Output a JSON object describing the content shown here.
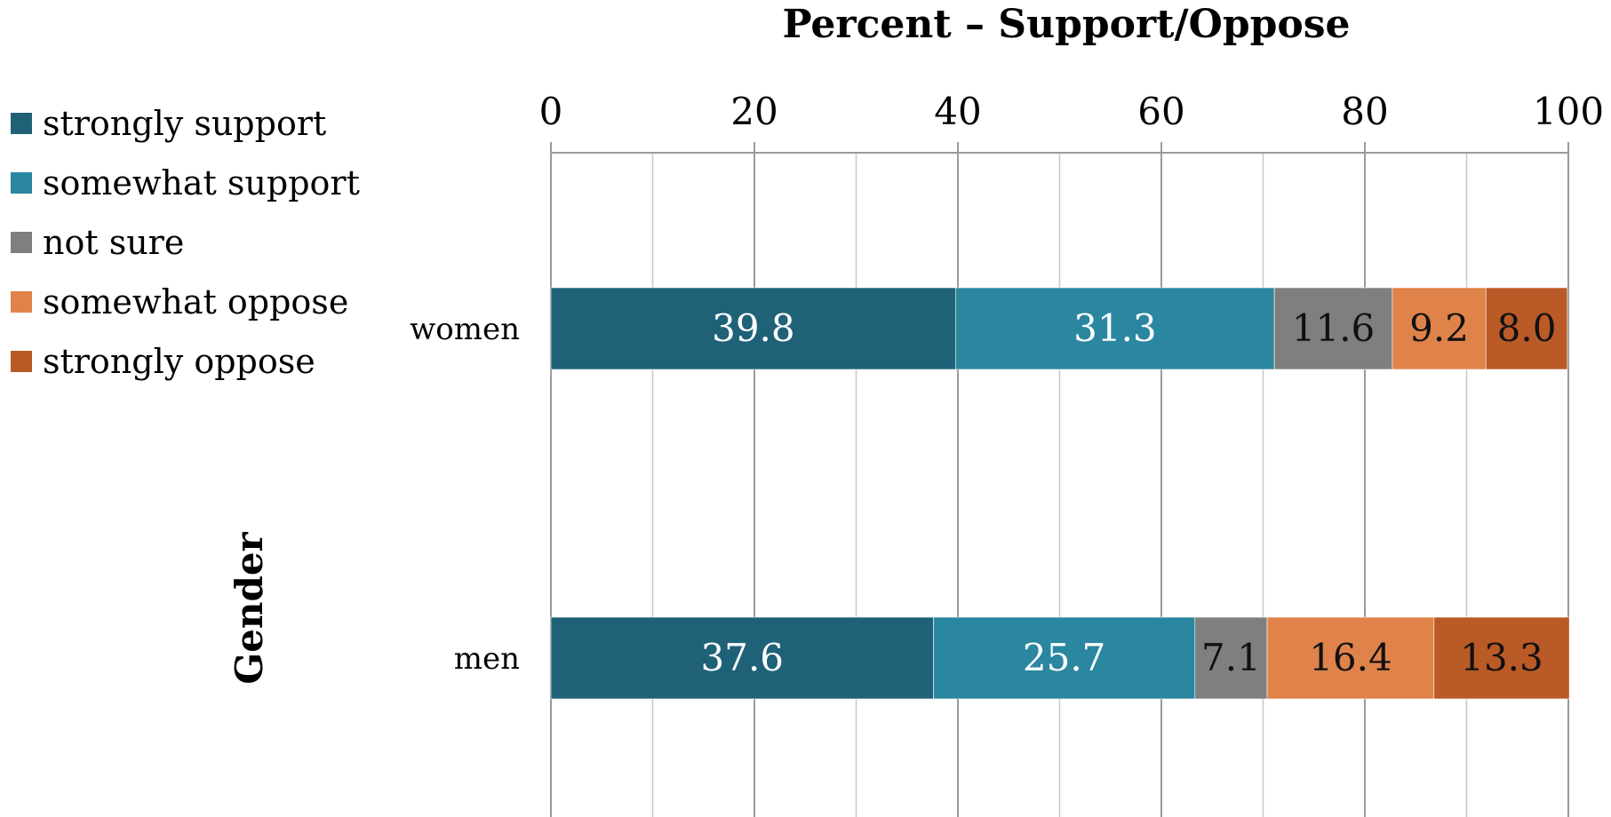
{
  "chart_data": {
    "type": "bar",
    "orientation": "horizontal",
    "stacked": true,
    "title": "Percent – Support/Oppose",
    "xlabel": "Percent – Support/Oppose",
    "ylabel": "Gender",
    "categories": [
      "women",
      "men"
    ],
    "xlim": [
      0,
      100
    ],
    "x_ticks": [
      "0",
      "20",
      "40",
      "60",
      "80",
      "100"
    ],
    "grid": true,
    "legend_position": "left",
    "series": [
      {
        "name": "strongly support",
        "values": [
          39.8,
          37.6
        ],
        "color": "#1f6277",
        "label_color": "#ffffff"
      },
      {
        "name": "somewhat support",
        "values": [
          31.3,
          25.7
        ],
        "color": "#2b86a0",
        "label_color": "#ffffff"
      },
      {
        "name": "not sure",
        "values": [
          11.6,
          7.1
        ],
        "color": "#7f7f7f",
        "label_color": "#111111"
      },
      {
        "name": "somewhat oppose",
        "values": [
          9.2,
          16.4
        ],
        "color": "#e0834a",
        "label_color": "#111111"
      },
      {
        "name": "strongly oppose",
        "values": [
          8.0,
          13.3
        ],
        "color": "#ba5a26",
        "label_color": "#111111"
      }
    ]
  }
}
